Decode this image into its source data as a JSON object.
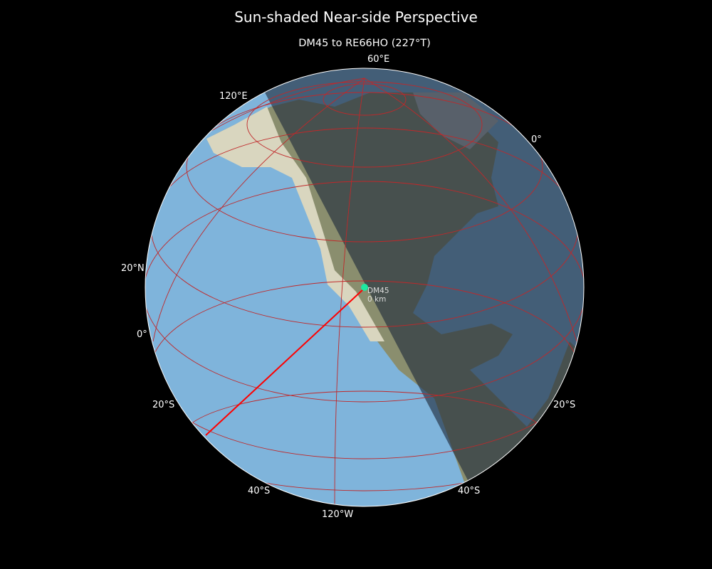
{
  "title": "Sun-shaded Near-side Perspective",
  "subtitle": "DM45 to RE66HO (227°T)",
  "graticule_labels": [
    "60°E",
    "120°E",
    "0°",
    "20°N",
    "0°",
    "20°S",
    "20°S",
    "40°S",
    "40°S",
    "120°W"
  ],
  "site": {
    "name": "DM45",
    "distance": "0 km",
    "color": "#1de9a0"
  },
  "path": {
    "from": "DM45",
    "to": "RE66HO",
    "bearing": "227°T",
    "color": "#ff0000"
  },
  "colors": {
    "ocean": "#7fb4db",
    "land_day": "#d9d6bf",
    "night_overlay": "#1e2a3a",
    "graticule": "#c0282a",
    "globe_edge": "#ffffff"
  }
}
